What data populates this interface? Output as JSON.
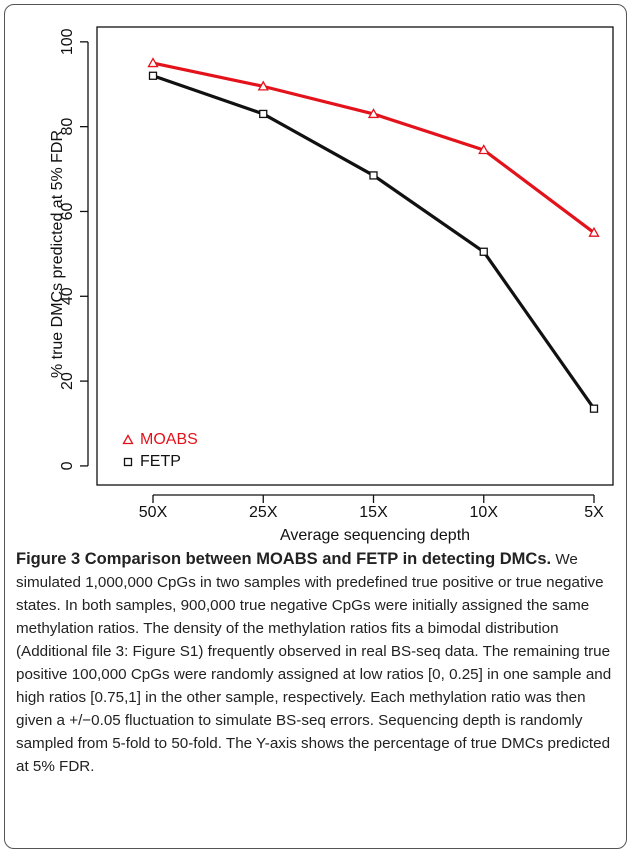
{
  "chart_data": {
    "type": "line",
    "xlabel": "Average sequencing depth",
    "ylabel": "% true DMCs predicted at 5% FDR",
    "categories": [
      "50X",
      "25X",
      "15X",
      "10X",
      "5X"
    ],
    "series": [
      {
        "name": "MOABS",
        "color": "#e3121b",
        "marker": "triangle",
        "values": [
          95,
          89.5,
          83,
          74.5,
          55
        ]
      },
      {
        "name": "FETP",
        "color": "#111111",
        "marker": "square",
        "values": [
          92,
          83,
          68.5,
          50.5,
          13.5
        ]
      }
    ],
    "ylim": [
      -4.5,
      103.5
    ],
    "yticks": [
      0,
      20,
      40,
      60,
      80,
      100
    ],
    "legend": "bottom-left"
  },
  "caption": {
    "title": "Figure 3 Comparison between MOABS and FETP in detecting DMCs.",
    "text": "We simulated 1,000,000 CpGs in two samples with predefined true positive or true negative states. In both samples, 900,000 true negative CpGs were initially assigned the same methylation ratios. The density of the methylation ratios fits a bimodal distribution (Additional file 3: Figure S1) frequently observed in real BS-seq data. The remaining true positive 100,000 CpGs were randomly assigned at low ratios [0, 0.25] in one sample and high ratios [0.75,1] in the other sample, respectively. Each methylation ratio was then given a +/−0.05 fluctuation to simulate BS-seq errors. Sequencing depth is randomly sampled from 5-fold to 50-fold. The Y-axis shows the percentage of true DMCs predicted at 5% FDR."
  }
}
